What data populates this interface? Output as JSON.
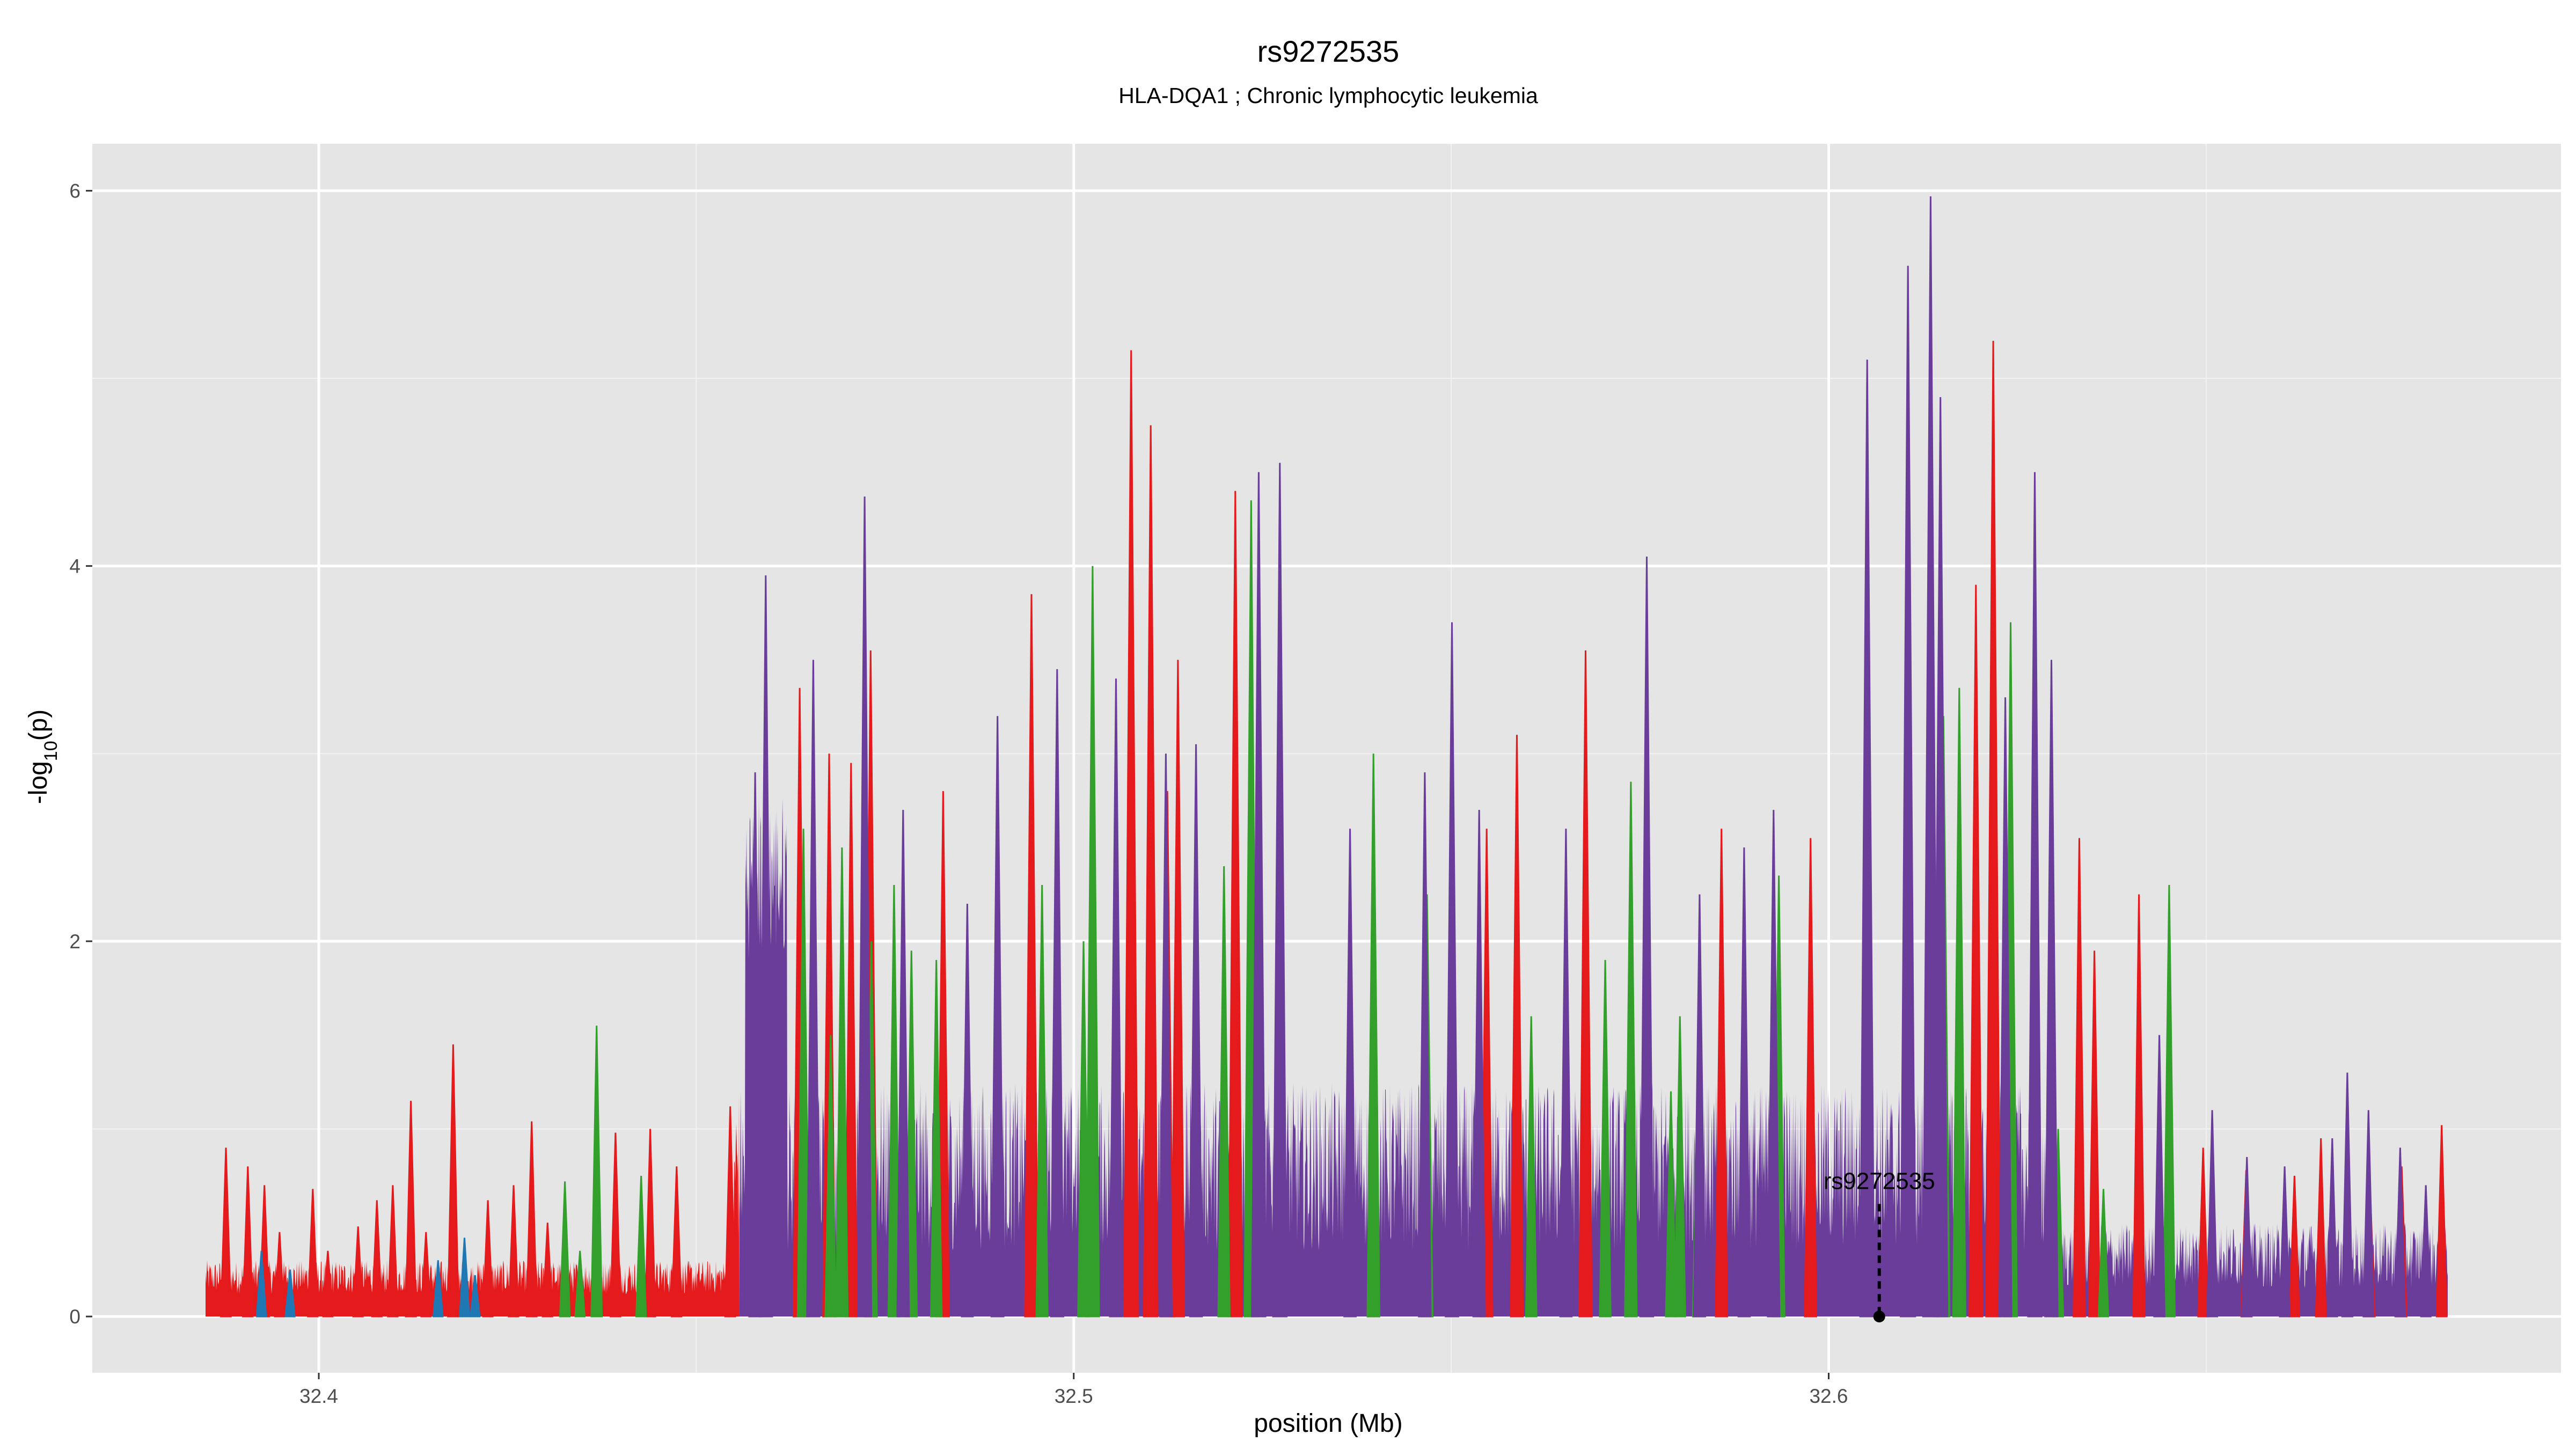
{
  "chart_data": {
    "type": "area",
    "title": "rs9272535",
    "subtitle": "HLA-DQA1 ; Chronic lymphocytic leukemia",
    "xlabel": "position (Mb)",
    "ylabel": "-log10(p)",
    "xlim": [
      32.37,
      32.697
    ],
    "ylim": [
      -0.3,
      6.25
    ],
    "x_ticks": [
      32.4,
      32.5,
      32.6
    ],
    "x_tick_labels": [
      "32.4",
      "32.5",
      "32.6"
    ],
    "y_ticks": [
      0,
      2,
      4,
      6
    ],
    "y_tick_labels": [
      "0",
      "2",
      "4",
      "6"
    ],
    "grid": true,
    "legend": "none",
    "x_range": [
      32.385,
      32.682
    ],
    "colors": {
      "panel_bg": "#e5e5e5",
      "grid_major": "#ffffff",
      "grid_minor": "#f2f2f2",
      "red": "#e41a1c",
      "blue": "#1f78b4",
      "green": "#33a02c",
      "purple": "#6a3d9a"
    },
    "color_segments": [
      {
        "start": 32.385,
        "end": 32.4557,
        "color": "red"
      },
      {
        "start": 32.4557,
        "end": 32.682,
        "color": "purple"
      }
    ],
    "annotation": {
      "label": "rs9272535",
      "x": 32.6067,
      "y": 0
    },
    "series": [
      {
        "color": "red",
        "peaks": [
          {
            "x": 32.3877,
            "y": 0.9
          },
          {
            "x": 32.3906,
            "y": 0.8
          },
          {
            "x": 32.3928,
            "y": 0.7
          },
          {
            "x": 32.3948,
            "y": 0.45
          },
          {
            "x": 32.3992,
            "y": 0.68
          },
          {
            "x": 32.4012,
            "y": 0.35
          },
          {
            "x": 32.4052,
            "y": 0.48
          },
          {
            "x": 32.4077,
            "y": 0.62
          },
          {
            "x": 32.4098,
            "y": 0.7
          },
          {
            "x": 32.4122,
            "y": 1.15
          },
          {
            "x": 32.4142,
            "y": 0.45
          },
          {
            "x": 32.4178,
            "y": 1.45
          },
          {
            "x": 32.4224,
            "y": 0.62
          },
          {
            "x": 32.4258,
            "y": 0.7
          },
          {
            "x": 32.4282,
            "y": 1.04
          },
          {
            "x": 32.4303,
            "y": 0.5
          },
          {
            "x": 32.4393,
            "y": 0.98
          },
          {
            "x": 32.4439,
            "y": 1.0
          },
          {
            "x": 32.4474,
            "y": 0.8
          },
          {
            "x": 32.4545,
            "y": 1.12
          },
          {
            "x": 32.4637,
            "y": 3.35
          },
          {
            "x": 32.4676,
            "y": 3.0
          },
          {
            "x": 32.4705,
            "y": 2.95
          },
          {
            "x": 32.4731,
            "y": 3.55
          },
          {
            "x": 32.4827,
            "y": 2.8
          },
          {
            "x": 32.4944,
            "y": 3.85
          },
          {
            "x": 32.5076,
            "y": 5.15
          },
          {
            "x": 32.5102,
            "y": 4.75
          },
          {
            "x": 32.5124,
            "y": 2.8
          },
          {
            "x": 32.5138,
            "y": 3.5
          },
          {
            "x": 32.5214,
            "y": 4.4
          },
          {
            "x": 32.5397,
            "y": 2.9
          },
          {
            "x": 32.5547,
            "y": 2.6
          },
          {
            "x": 32.5587,
            "y": 3.1
          },
          {
            "x": 32.5678,
            "y": 3.55
          },
          {
            "x": 32.5858,
            "y": 2.6
          },
          {
            "x": 32.5976,
            "y": 2.55
          },
          {
            "x": 32.6195,
            "y": 3.9
          },
          {
            "x": 32.6218,
            "y": 5.2
          },
          {
            "x": 32.6332,
            "y": 2.55
          },
          {
            "x": 32.6352,
            "y": 1.95
          },
          {
            "x": 32.6411,
            "y": 2.25
          },
          {
            "x": 32.6496,
            "y": 0.9
          },
          {
            "x": 32.6553,
            "y": 0.78
          },
          {
            "x": 32.6617,
            "y": 0.75
          },
          {
            "x": 32.6652,
            "y": 0.95
          },
          {
            "x": 32.6717,
            "y": 0.7
          },
          {
            "x": 32.6759,
            "y": 0.8
          },
          {
            "x": 32.6812,
            "y": 1.02
          }
        ]
      },
      {
        "color": "blue",
        "peaks": [
          {
            "x": 32.3924,
            "y": 0.35
          },
          {
            "x": 32.3962,
            "y": 0.25
          },
          {
            "x": 32.4158,
            "y": 0.3
          },
          {
            "x": 32.4193,
            "y": 0.42
          },
          {
            "x": 32.4207,
            "y": 0.22
          }
        ]
      },
      {
        "color": "green",
        "peaks": [
          {
            "x": 32.4326,
            "y": 0.72
          },
          {
            "x": 32.4346,
            "y": 0.35
          },
          {
            "x": 32.4368,
            "y": 1.55
          },
          {
            "x": 32.4427,
            "y": 0.75
          },
          {
            "x": 32.4642,
            "y": 2.6
          },
          {
            "x": 32.4678,
            "y": 1.5
          },
          {
            "x": 32.4693,
            "y": 2.5
          },
          {
            "x": 32.4732,
            "y": 2.0
          },
          {
            "x": 32.4762,
            "y": 2.3
          },
          {
            "x": 32.4785,
            "y": 1.95
          },
          {
            "x": 32.4818,
            "y": 1.9
          },
          {
            "x": 32.4958,
            "y": 2.3
          },
          {
            "x": 32.5013,
            "y": 2.0
          },
          {
            "x": 32.5025,
            "y": 4.0
          },
          {
            "x": 32.5199,
            "y": 2.4
          },
          {
            "x": 32.5235,
            "y": 4.35
          },
          {
            "x": 32.5397,
            "y": 3.0
          },
          {
            "x": 32.5468,
            "y": 2.25
          },
          {
            "x": 32.5606,
            "y": 1.6
          },
          {
            "x": 32.5704,
            "y": 1.9
          },
          {
            "x": 32.5738,
            "y": 2.85
          },
          {
            "x": 32.5791,
            "y": 1.2
          },
          {
            "x": 32.5803,
            "y": 1.6
          },
          {
            "x": 32.5827,
            "y": 1.4
          },
          {
            "x": 32.5934,
            "y": 2.35
          },
          {
            "x": 32.6152,
            "y": 3.2
          },
          {
            "x": 32.6173,
            "y": 3.35
          },
          {
            "x": 32.6241,
            "y": 3.7
          },
          {
            "x": 32.6304,
            "y": 1.0
          },
          {
            "x": 32.6364,
            "y": 0.68
          },
          {
            "x": 32.6451,
            "y": 2.3
          }
        ]
      },
      {
        "color": "purple",
        "peaks": [
          {
            "x": 32.4578,
            "y": 2.9
          },
          {
            "x": 32.4592,
            "y": 3.95
          },
          {
            "x": 32.4655,
            "y": 3.5
          },
          {
            "x": 32.4723,
            "y": 4.37
          },
          {
            "x": 32.4774,
            "y": 2.7
          },
          {
            "x": 32.4859,
            "y": 2.2
          },
          {
            "x": 32.4899,
            "y": 3.2
          },
          {
            "x": 32.4978,
            "y": 3.45
          },
          {
            "x": 32.5056,
            "y": 3.4
          },
          {
            "x": 32.5122,
            "y": 3.0
          },
          {
            "x": 32.5162,
            "y": 3.05
          },
          {
            "x": 32.5245,
            "y": 4.5
          },
          {
            "x": 32.5273,
            "y": 4.55
          },
          {
            "x": 32.5366,
            "y": 2.6
          },
          {
            "x": 32.5465,
            "y": 2.9
          },
          {
            "x": 32.5501,
            "y": 3.7
          },
          {
            "x": 32.5537,
            "y": 2.7
          },
          {
            "x": 32.5652,
            "y": 2.6
          },
          {
            "x": 32.5759,
            "y": 4.05
          },
          {
            "x": 32.5829,
            "y": 2.25
          },
          {
            "x": 32.5888,
            "y": 2.5
          },
          {
            "x": 32.5927,
            "y": 2.7
          },
          {
            "x": 32.6051,
            "y": 5.1
          },
          {
            "x": 32.6105,
            "y": 5.6
          },
          {
            "x": 32.6135,
            "y": 5.97
          },
          {
            "x": 32.6148,
            "y": 4.9
          },
          {
            "x": 32.6234,
            "y": 3.3
          },
          {
            "x": 32.6273,
            "y": 4.5
          },
          {
            "x": 32.6295,
            "y": 3.5
          },
          {
            "x": 32.6438,
            "y": 1.5
          },
          {
            "x": 32.6508,
            "y": 1.1
          },
          {
            "x": 32.6554,
            "y": 0.85
          },
          {
            "x": 32.6604,
            "y": 0.8
          },
          {
            "x": 32.6667,
            "y": 0.95
          },
          {
            "x": 32.6687,
            "y": 1.3
          },
          {
            "x": 32.6715,
            "y": 1.1
          },
          {
            "x": 32.6757,
            "y": 0.9
          },
          {
            "x": 32.6791,
            "y": 0.7
          }
        ]
      }
    ]
  }
}
